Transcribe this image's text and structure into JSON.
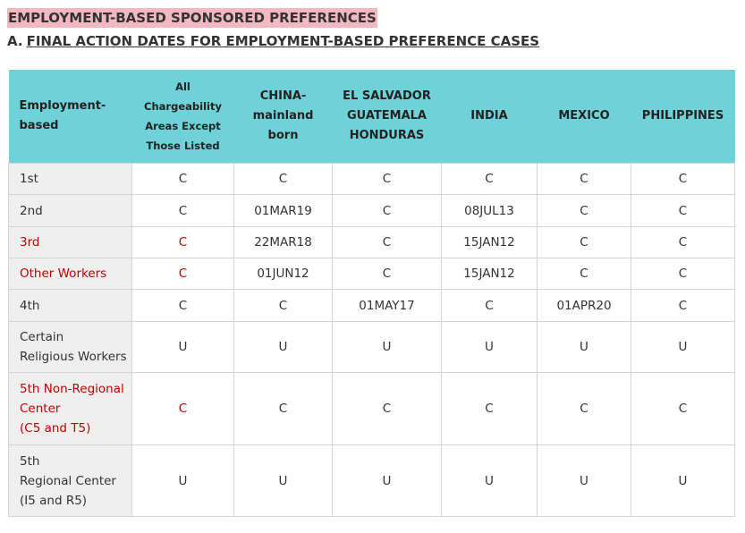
{
  "header": {
    "title": "EMPLOYMENT-BASED SPONSORED PREFERENCES",
    "section_letter": "A.",
    "section_title": "FINAL ACTION DATES FOR EMPLOYMENT-BASED PREFERENCE CASES"
  },
  "table": {
    "columns": [
      [
        "Employment-",
        "based"
      ],
      [
        "All",
        "Chargeability",
        "Areas Except",
        "Those Listed"
      ],
      [
        "CHINA-",
        "mainland",
        "born"
      ],
      [
        "EL SALVADOR",
        "GUATEMALA",
        "HONDURAS"
      ],
      [
        "INDIA"
      ],
      [
        "MEXICO"
      ],
      [
        "PHILIPPINES"
      ]
    ],
    "highlight_color": "#c00000",
    "rows": [
      {
        "label": [
          "1st"
        ],
        "cells": [
          "C",
          "C",
          "C",
          "C",
          "C",
          "C"
        ]
      },
      {
        "label": [
          "2nd"
        ],
        "cells": [
          "C",
          "01MAR19",
          "C",
          "08JUL13",
          "C",
          "C"
        ]
      },
      {
        "label": [
          "3rd"
        ],
        "cells": [
          "C",
          "22MAR18",
          "C",
          "15JAN12",
          "C",
          "C"
        ],
        "highlight": true
      },
      {
        "label": [
          "Other Workers"
        ],
        "cells": [
          "C",
          "01JUN12",
          "C",
          "15JAN12",
          "C",
          "C"
        ],
        "highlight": true
      },
      {
        "label": [
          "4th"
        ],
        "cells": [
          "C",
          "C",
          "01MAY17",
          "C",
          "01APR20",
          "C"
        ]
      },
      {
        "label": [
          "Certain",
          "Religious Workers"
        ],
        "cells": [
          "U",
          "U",
          "U",
          "U",
          "U",
          "U"
        ]
      },
      {
        "label": [
          "5th Non-Regional",
          "Center",
          "(C5 and T5)"
        ],
        "cells": [
          "C",
          "C",
          "C",
          "C",
          "C",
          "C"
        ],
        "highlight": true
      },
      {
        "label": [
          "5th",
          "Regional Center",
          "(I5 and R5)"
        ],
        "cells": [
          "U",
          "U",
          "U",
          "U",
          "U",
          "U"
        ]
      }
    ]
  }
}
